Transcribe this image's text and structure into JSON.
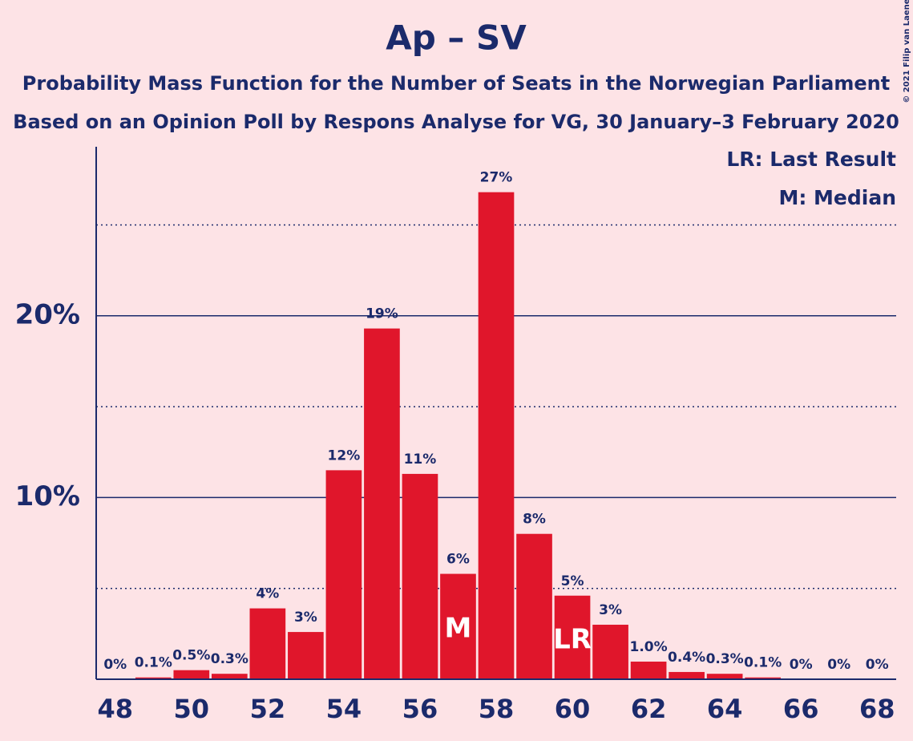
{
  "chart_data": {
    "type": "bar",
    "title": "Ap – SV",
    "subtitle": "Probability Mass Function for the Number of Seats in the Norwegian Parliament",
    "subtitle2": "Based on an Opinion Poll by Respons Analyse for VG, 30 January–3 February 2020",
    "copyright": "© 2021 Filip van Laenen",
    "legend": [
      "LR: Last Result",
      "M: Median"
    ],
    "x": [
      48,
      49,
      50,
      51,
      52,
      53,
      54,
      55,
      56,
      57,
      58,
      59,
      60,
      61,
      62,
      63,
      64,
      65,
      66,
      67,
      68
    ],
    "values": [
      0,
      0.1,
      0.5,
      0.3,
      3.9,
      2.6,
      11.5,
      19.3,
      11.3,
      5.8,
      26.8,
      8.0,
      4.6,
      3.0,
      0.97,
      0.4,
      0.3,
      0.1,
      0,
      0,
      0
    ],
    "value_labels": [
      "0%",
      "0.1%",
      "0.5%",
      "0.3%",
      "4%",
      "3%",
      "12%",
      "19%",
      "11%",
      "6%",
      "27%",
      "8%",
      "5%",
      "3%",
      "1.0%",
      "0.4%",
      "0.3%",
      "0.1%",
      "0%",
      "0%",
      "0%"
    ],
    "color": "#e0162b",
    "median": 57,
    "median_label": "M",
    "last_result": 60,
    "last_result_label": "LR",
    "xlim": [
      47.5,
      68.5
    ],
    "xticks": [
      48,
      50,
      52,
      54,
      56,
      58,
      60,
      62,
      64,
      66,
      68
    ],
    "ylim": [
      0,
      29.3
    ],
    "yticks": [
      {
        "value": 10,
        "label": "10%"
      },
      {
        "value": 20,
        "label": "20%"
      }
    ],
    "minor_yticks": [
      5,
      15,
      25
    ],
    "grid": true
  }
}
